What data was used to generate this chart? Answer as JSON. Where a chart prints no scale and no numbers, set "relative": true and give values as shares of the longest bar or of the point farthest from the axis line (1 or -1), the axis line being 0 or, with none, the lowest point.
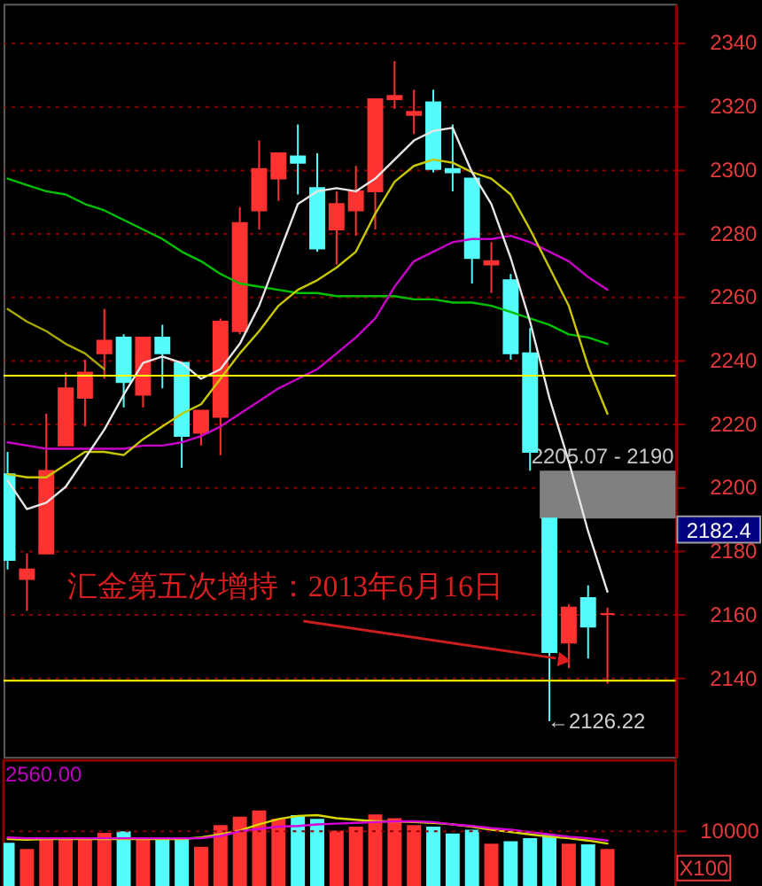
{
  "chart_data": [
    {
      "type": "candlestick",
      "categories": [
        null,
        null,
        null,
        null,
        null,
        null,
        null,
        null,
        null,
        null,
        null,
        null,
        null,
        null,
        null,
        null,
        null,
        null,
        null,
        null,
        null,
        null,
        null,
        null,
        null,
        null,
        null,
        null,
        null,
        null,
        null,
        null
      ],
      "ohlc": [
        [
          2204,
          2211,
          2174,
          2177
        ],
        [
          2171,
          2179,
          2161,
          2174
        ],
        [
          2179,
          2223,
          2179,
          2205
        ],
        [
          2213,
          2236,
          2213,
          2231
        ],
        [
          2228,
          2240,
          2219,
          2236
        ],
        [
          2242,
          2256,
          2234,
          2246
        ],
        [
          2247,
          2248,
          2225,
          2233
        ],
        [
          2229,
          2247,
          2225,
          2247
        ],
        [
          2247,
          2251,
          2231,
          2242
        ],
        [
          2239,
          2239,
          2206,
          2216
        ],
        [
          2217,
          2224,
          2213,
          2224
        ],
        [
          2222,
          2253,
          2210,
          2252
        ],
        [
          2249,
          2288,
          2248,
          2283
        ],
        [
          2287,
          2309,
          2281,
          2300
        ],
        [
          2297,
          2305,
          2290,
          2305
        ],
        [
          2304,
          2314,
          2292,
          2302
        ],
        [
          2294,
          2305,
          2274,
          2275
        ],
        [
          2281,
          2293,
          2270,
          2289
        ],
        [
          2287,
          2301,
          2279,
          2293
        ],
        [
          2293,
          2322,
          2281,
          2322
        ],
        [
          2322,
          2334,
          2319,
          2323
        ],
        [
          2317,
          2325,
          2311,
          2318
        ],
        [
          2321,
          2325,
          2299,
          2300
        ],
        [
          2300,
          2314,
          2293,
          2299
        ],
        [
          2297,
          2297,
          2264,
          2272
        ],
        [
          2270,
          2277,
          2261,
          2271
        ],
        [
          2265,
          2267,
          2240,
          2242
        ],
        [
          2242,
          2250,
          2205.07,
          2211
        ],
        [
          2190,
          2190,
          2126.22,
          2148
        ],
        [
          2151,
          2163,
          2143,
          2162
        ],
        [
          2165,
          2169,
          2146,
          2156
        ],
        [
          2160,
          2162,
          2138,
          2160
        ]
      ],
      "colors": [
        "#54fcfc",
        "#ff3232",
        "#ff3232",
        "#ff3232",
        "#ff3232",
        "#ff3232",
        "#54fcfc",
        "#ff3232",
        "#54fcfc",
        "#54fcfc",
        "#ff3232",
        "#ff3232",
        "#ff3232",
        "#ff3232",
        "#ff3232",
        "#54fcfc",
        "#54fcfc",
        "#ff3232",
        "#ff3232",
        "#ff3232",
        "#ff3232",
        "#ff3232",
        "#54fcfc",
        "#54fcfc",
        "#54fcfc",
        "#ff3232",
        "#54fcfc",
        "#54fcfc",
        "#54fcfc",
        "#ff3232",
        "#54fcfc",
        "#ff3232"
      ],
      "series": [
        {
          "type": "line",
          "color": "#00c000",
          "values": [
            2297,
            2295,
            2293,
            2292,
            2289,
            2287,
            2284,
            2281,
            2278,
            2274,
            2271,
            2267,
            2264,
            2263,
            2262,
            2261,
            2261,
            2260,
            2260,
            2260,
            2260,
            2259,
            2259,
            2258,
            2258,
            2257,
            2255,
            2253,
            2251,
            2248,
            2247,
            2245
          ]
        },
        {
          "type": "line",
          "color": "#c800c8",
          "values": [
            2214,
            2213,
            2212,
            2212,
            2212,
            2212,
            2212,
            2213,
            2213,
            2214,
            2216,
            2219,
            2223,
            2227,
            2231,
            2234,
            2237,
            2242,
            2247,
            2253,
            2263,
            2271,
            2274,
            2277,
            2278,
            2278,
            2279,
            2277,
            2274,
            2271,
            2266,
            2262
          ]
        },
        {
          "type": "line",
          "color": "#a8a800",
          "values": [
            2256,
            2252,
            2249,
            2245,
            2242,
            2237,
            null,
            null,
            null,
            null,
            null,
            null,
            null,
            null,
            null,
            null,
            null,
            null,
            null,
            null,
            null,
            null,
            null,
            null,
            null,
            null,
            null,
            null,
            null,
            null,
            null,
            null
          ]
        },
        {
          "type": "line",
          "color": "#c8c800",
          "values": [
            2204,
            2203,
            2203,
            2207,
            2211,
            2211,
            2210,
            2215,
            2219,
            2223,
            2226,
            2234,
            2242,
            2249,
            2257,
            2262,
            2265,
            2269,
            2274,
            2286,
            2296,
            2301,
            2303,
            2302,
            2299,
            2297,
            2292,
            2281,
            2269,
            2257,
            2238,
            2223
          ]
        },
        {
          "type": "line",
          "color": "#e6e6e6",
          "values": [
            2202,
            2193,
            2195,
            2200,
            2209,
            2218,
            2229,
            2239,
            2241,
            2239,
            2234,
            2237,
            2245,
            2257,
            2273,
            2289,
            2293,
            2294,
            2293,
            2297,
            2303,
            2309,
            2312,
            2313,
            2299,
            2289,
            2272,
            2252,
            2228,
            2208,
            2186,
            2167
          ]
        }
      ],
      "ylim": [
        2115,
        2352
      ],
      "yticks": [
        2140,
        2160,
        2180,
        2200,
        2220,
        2240,
        2260,
        2280,
        2300,
        2320,
        2340
      ],
      "grid": "y",
      "tick_labels": "y",
      "ref_lines": [
        {
          "axis": "y",
          "value": 2235,
          "color": "#ffff00"
        },
        {
          "axis": "y",
          "value": 2139,
          "color": "#ffff00"
        }
      ],
      "bands": [
        {
          "axis": "y",
          "from": 2190,
          "to": 2205.07,
          "label": "2205.07 - 2190",
          "color": "#808080"
        }
      ],
      "annotations": [
        "汇金第五次增持：2013年6月16日",
        "←2126.22",
        "2182.4"
      ]
    },
    {
      "type": "bar",
      "relative": true,
      "categories": [
        null,
        null,
        null,
        null,
        null,
        null,
        null,
        null,
        null,
        null,
        null,
        null,
        null,
        null,
        null,
        null,
        null,
        null,
        null,
        null,
        null,
        null,
        null,
        null,
        null,
        null,
        null,
        null,
        null,
        null,
        null,
        null
      ],
      "values": [
        0.58,
        0.5,
        0.63,
        0.65,
        0.63,
        0.71,
        0.73,
        0.63,
        0.62,
        0.65,
        0.53,
        0.81,
        0.92,
        1,
        0.89,
        0.94,
        0.89,
        0.74,
        0.79,
        0.95,
        0.9,
        0.81,
        0.79,
        0.7,
        0.75,
        0.57,
        0.6,
        0.64,
        0.69,
        0.57,
        0.56,
        0.5
      ],
      "colors": [
        "#54fcfc",
        "#ff3232",
        "#ff3232",
        "#ff3232",
        "#ff3232",
        "#ff3232",
        "#54fcfc",
        "#ff3232",
        "#54fcfc",
        "#54fcfc",
        "#ff3232",
        "#ff3232",
        "#ff3232",
        "#ff3232",
        "#ff3232",
        "#54fcfc",
        "#54fcfc",
        "#ff3232",
        "#ff3232",
        "#ff3232",
        "#ff3232",
        "#ff3232",
        "#54fcfc",
        "#54fcfc",
        "#54fcfc",
        "#ff3232",
        "#54fcfc",
        "#54fcfc",
        "#54fcfc",
        "#ff3232",
        "#54fcfc",
        "#ff3232"
      ],
      "series": [
        {
          "type": "line",
          "color": "#d8d800",
          "values": [
            0.63,
            0.62,
            0.63,
            0.63,
            0.63,
            0.63,
            0.63,
            0.63,
            0.63,
            0.63,
            0.65,
            0.69,
            0.74,
            0.82,
            0.89,
            0.93,
            0.94,
            0.9,
            0.88,
            0.86,
            0.86,
            0.85,
            0.84,
            0.82,
            0.79,
            0.75,
            0.72,
            0.69,
            0.66,
            0.64,
            0.61,
            0.57
          ]
        },
        {
          "type": "line",
          "color": "#d800d8",
          "values": [
            0.65,
            0.64,
            0.64,
            0.64,
            0.64,
            0.64,
            0.64,
            0.64,
            0.64,
            0.64,
            0.64,
            0.67,
            0.73,
            0.76,
            0.79,
            0.8,
            0.82,
            0.83,
            0.84,
            0.85,
            0.86,
            0.86,
            0.85,
            0.82,
            0.8,
            0.77,
            0.75,
            0.72,
            0.69,
            0.66,
            0.64,
            0.61
          ]
        }
      ],
      "tick_labels": false,
      "ref_lines": [
        {
          "axis": "y",
          "value": 0.73,
          "color": "#8c0000",
          "line_style": "dotted"
        }
      ],
      "annotations": [
        "2560.00",
        "10000",
        "X100"
      ]
    }
  ]
}
